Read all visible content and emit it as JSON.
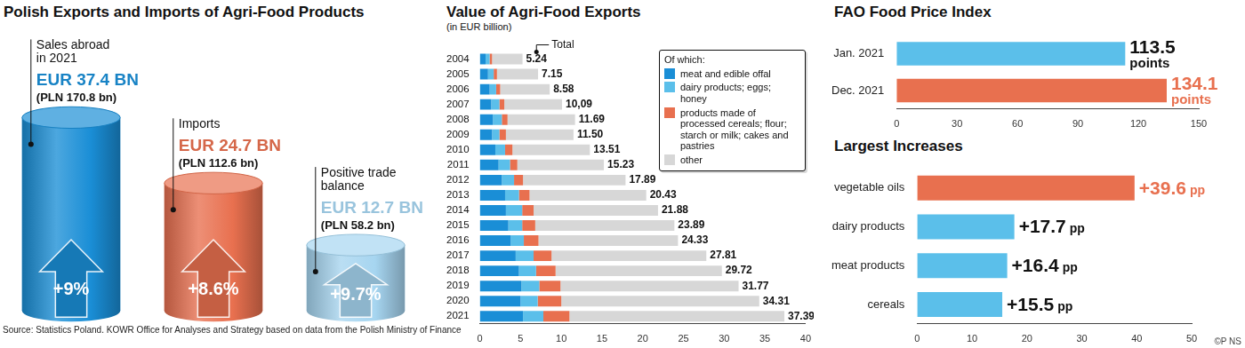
{
  "chart_data": [
    {
      "type": "bar",
      "title": "Polish Exports and Imports of Agri-Food Products",
      "categories": [
        "Sales abroad in 2021",
        "Imports",
        "Positive trade balance"
      ],
      "values": [
        37.4,
        24.7,
        12.7
      ],
      "value_labels": [
        "EUR 37.4 BN",
        "EUR 24.7 BN",
        "EUR 12.7 BN"
      ],
      "pln_labels": [
        "(PLN 170.8 bn)",
        "(PLN 112.6 bn)",
        "(PLN 58.2 bn)"
      ],
      "change_labels": [
        "+9%",
        "+8.6%",
        "+9.7%"
      ],
      "colors": [
        "#1a8ed6",
        "#e8704f",
        "#a6d5f0"
      ],
      "ylim": [
        0,
        55
      ],
      "grid": false,
      "tick_labels": false,
      "data_labels": true
    },
    {
      "type": "bar",
      "orientation": "horizontal",
      "stacked": true,
      "title": "Value of Agri-Food Exports",
      "subtitle": "(in EUR billion)",
      "categories": [
        "2004",
        "2005",
        "2006",
        "2007",
        "2008",
        "2009",
        "2010",
        "2011",
        "2012",
        "2013",
        "2014",
        "2015",
        "2016",
        "2017",
        "2018",
        "2019",
        "2020",
        "2021"
      ],
      "series": [
        {
          "name": "meat and edible offal",
          "color": "#1a8ed6",
          "values": [
            0.7,
            1.0,
            1.2,
            1.4,
            1.6,
            1.5,
            1.9,
            2.3,
            2.7,
            3.1,
            3.2,
            3.5,
            3.8,
            4.4,
            4.8,
            5.1,
            5.0,
            5.3
          ]
        },
        {
          "name": "dairy products; eggs; honey",
          "color": "#5bbfea",
          "values": [
            0.5,
            0.7,
            0.8,
            1.0,
            1.1,
            0.9,
            1.2,
            1.4,
            1.5,
            1.7,
            2.0,
            1.7,
            1.6,
            2.2,
            2.1,
            2.2,
            2.1,
            2.5
          ]
        },
        {
          "name": "products made of processed cereals; flour; starch or milk; cakes and pastries",
          "color": "#e8704f",
          "values": [
            0.3,
            0.4,
            0.5,
            0.6,
            0.7,
            0.8,
            0.9,
            0.9,
            1.1,
            1.3,
            1.4,
            1.6,
            1.8,
            2.2,
            2.4,
            2.6,
            2.9,
            3.2
          ]
        },
        {
          "name": "other",
          "color": "#d7d7d7",
          "values": [
            3.74,
            5.05,
            6.08,
            7.09,
            8.29,
            8.3,
            9.51,
            10.63,
            12.59,
            14.33,
            15.28,
            17.09,
            17.13,
            19.01,
            20.42,
            21.87,
            24.31,
            26.39
          ]
        }
      ],
      "totals": [
        5.24,
        7.15,
        8.58,
        10.09,
        11.69,
        11.5,
        13.51,
        15.23,
        17.89,
        20.43,
        21.88,
        23.89,
        24.33,
        27.81,
        29.72,
        31.77,
        34.31,
        37.39
      ],
      "total_labels": [
        "5.24",
        "7.15",
        "8.58",
        "10,09",
        "11.69",
        "11.50",
        "13.51",
        "15.23",
        "17.89",
        "20.43",
        "21.88",
        "23.89",
        "24.33",
        "27.81",
        "29.72",
        "31.77",
        "34.31",
        "37.39"
      ],
      "total_annotation": "Total",
      "legend_title": "Of which:",
      "legend": "upper right",
      "xlim": [
        0,
        40
      ],
      "xticks": [
        0,
        5,
        10,
        15,
        20,
        25,
        30,
        35,
        40
      ],
      "grid": false
    },
    {
      "type": "bar",
      "orientation": "horizontal",
      "title": "FAO Food Price Index",
      "categories": [
        "Jan. 2021",
        "Dec. 2021"
      ],
      "values": [
        113.5,
        134.1
      ],
      "value_labels": [
        "113.5 points",
        "134.1 points"
      ],
      "colors": [
        "#5bbfea",
        "#e8704f"
      ],
      "xlim": [
        0,
        150
      ],
      "xticks": [
        0,
        30,
        60,
        90,
        120,
        150
      ],
      "grid": false,
      "data_labels": true
    },
    {
      "type": "bar",
      "orientation": "horizontal",
      "title": "Largest Increases",
      "categories": [
        "vegetable oils",
        "dairy products",
        "meat products",
        "cereals"
      ],
      "values": [
        39.6,
        17.7,
        16.4,
        15.5
      ],
      "value_labels": [
        "+39.6 pp",
        "+17.7 pp",
        "+16.4 pp",
        "+15.5 pp"
      ],
      "colors": [
        "#e8704f",
        "#5bbfea",
        "#5bbfea",
        "#5bbfea"
      ],
      "xlim": [
        0,
        50
      ],
      "xticks": [
        0,
        10,
        20,
        30,
        40,
        50
      ],
      "grid": false,
      "data_labels": true
    }
  ],
  "source": "Source: Statistics Poland. KOWR Office for Analyses and Strategy based on data from the Polish Ministry of Finance",
  "credit": "©P NS"
}
